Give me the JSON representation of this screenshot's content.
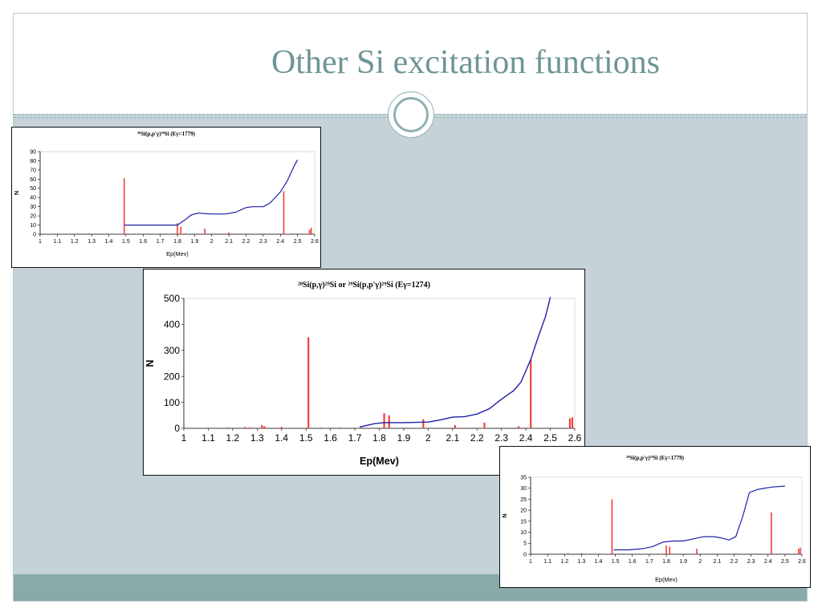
{
  "slide": {
    "title": "Other Si excitation functions"
  },
  "colors": {
    "title": "#6e9595",
    "background": "#c5d3d8",
    "footer": "#89aaaa",
    "curve": "#1f1fa8",
    "bars": "#f04040"
  },
  "chart_data": [
    {
      "type": "bar",
      "title": "²⁸Si(p,p'γ)²⁸Si (Eγ=1779)",
      "xlabel": "Ep(Mev)",
      "ylabel": "N",
      "xlim": [
        1,
        2.6
      ],
      "ylim": [
        0,
        90
      ],
      "xticks": [
        1,
        1.1,
        1.2,
        1.3,
        1.4,
        1.5,
        1.6,
        1.7,
        1.8,
        1.9,
        2,
        2.1,
        2.2,
        2.3,
        2.4,
        2.5,
        2.6
      ],
      "yticks": [
        0,
        10,
        20,
        30,
        40,
        50,
        60,
        70,
        80,
        90
      ],
      "bars": [
        [
          1.28,
          1
        ],
        [
          1.49,
          61
        ],
        [
          1.8,
          12
        ],
        [
          1.82,
          8
        ],
        [
          1.96,
          6
        ],
        [
          2.1,
          2
        ],
        [
          2.42,
          47
        ],
        [
          2.57,
          5
        ],
        [
          2.58,
          7
        ]
      ],
      "curve": [
        [
          1.49,
          10
        ],
        [
          1.6,
          10
        ],
        [
          1.7,
          10
        ],
        [
          1.8,
          10
        ],
        [
          1.84,
          15
        ],
        [
          1.88,
          21
        ],
        [
          1.92,
          23
        ],
        [
          2.0,
          22
        ],
        [
          2.08,
          22
        ],
        [
          2.14,
          24
        ],
        [
          2.2,
          29
        ],
        [
          2.24,
          30
        ],
        [
          2.3,
          30
        ],
        [
          2.34,
          34
        ],
        [
          2.4,
          46
        ],
        [
          2.44,
          58
        ],
        [
          2.48,
          74
        ],
        [
          2.5,
          81
        ]
      ]
    },
    {
      "type": "bar",
      "title": "²⁸Si(p,γ)²⁹Si or ²⁹Si(p,p'γ)²⁹Si (Eγ=1274)",
      "xlabel": "Ep(Mev)",
      "ylabel": "N",
      "xlim": [
        1,
        2.6
      ],
      "ylim": [
        0,
        500
      ],
      "xticks": [
        1,
        1.1,
        1.2,
        1.3,
        1.4,
        1.5,
        1.6,
        1.7,
        1.8,
        1.9,
        2,
        2.1,
        2.2,
        2.3,
        2.4,
        2.5,
        2.6
      ],
      "yticks": [
        0,
        100,
        200,
        300,
        400,
        500
      ],
      "bars": [
        [
          1.18,
          3
        ],
        [
          1.25,
          5
        ],
        [
          1.27,
          4
        ],
        [
          1.32,
          12
        ],
        [
          1.33,
          8
        ],
        [
          1.4,
          5
        ],
        [
          1.51,
          350
        ],
        [
          1.56,
          3
        ],
        [
          1.64,
          3
        ],
        [
          1.73,
          3
        ],
        [
          1.82,
          58
        ],
        [
          1.84,
          50
        ],
        [
          1.98,
          35
        ],
        [
          2.11,
          12
        ],
        [
          2.23,
          22
        ],
        [
          2.37,
          8
        ],
        [
          2.42,
          265
        ],
        [
          2.58,
          38
        ],
        [
          2.59,
          42
        ]
      ],
      "curve": [
        [
          1.72,
          5
        ],
        [
          1.78,
          18
        ],
        [
          1.82,
          22
        ],
        [
          1.9,
          22
        ],
        [
          2.0,
          24
        ],
        [
          2.05,
          32
        ],
        [
          2.1,
          43
        ],
        [
          2.15,
          45
        ],
        [
          2.2,
          55
        ],
        [
          2.25,
          75
        ],
        [
          2.3,
          112
        ],
        [
          2.35,
          145
        ],
        [
          2.38,
          178
        ],
        [
          2.42,
          265
        ],
        [
          2.45,
          350
        ],
        [
          2.48,
          430
        ],
        [
          2.5,
          505
        ]
      ]
    },
    {
      "type": "bar",
      "title": "²⁹Si(p,p'γ)²⁹Si (Eγ=1779)",
      "xlabel": "Ep(Mev)",
      "ylabel": "N",
      "xlim": [
        1,
        2.6
      ],
      "ylim": [
        0,
        35
      ],
      "xticks": [
        1,
        1.1,
        1.2,
        1.3,
        1.4,
        1.5,
        1.6,
        1.7,
        1.8,
        1.9,
        2,
        2.1,
        2.2,
        2.3,
        2.4,
        2.5,
        2.6
      ],
      "yticks": [
        0,
        5,
        10,
        15,
        20,
        25,
        30,
        35
      ],
      "bars": [
        [
          1.22,
          0.5
        ],
        [
          1.3,
          0.5
        ],
        [
          1.48,
          25
        ],
        [
          1.8,
          4
        ],
        [
          1.82,
          3.5
        ],
        [
          1.98,
          2.5
        ],
        [
          2.42,
          19
        ],
        [
          2.58,
          2.5
        ],
        [
          2.59,
          3
        ]
      ],
      "curve": [
        [
          1.49,
          2
        ],
        [
          1.58,
          2
        ],
        [
          1.66,
          2.5
        ],
        [
          1.72,
          3.5
        ],
        [
          1.78,
          5.5
        ],
        [
          1.84,
          6
        ],
        [
          1.9,
          6
        ],
        [
          1.96,
          7
        ],
        [
          2.02,
          8
        ],
        [
          2.08,
          8
        ],
        [
          2.12,
          7.5
        ],
        [
          2.17,
          6.5
        ],
        [
          2.21,
          8
        ],
        [
          2.25,
          17
        ],
        [
          2.29,
          28
        ],
        [
          2.34,
          29.5
        ],
        [
          2.42,
          30.5
        ],
        [
          2.5,
          31
        ]
      ]
    }
  ]
}
